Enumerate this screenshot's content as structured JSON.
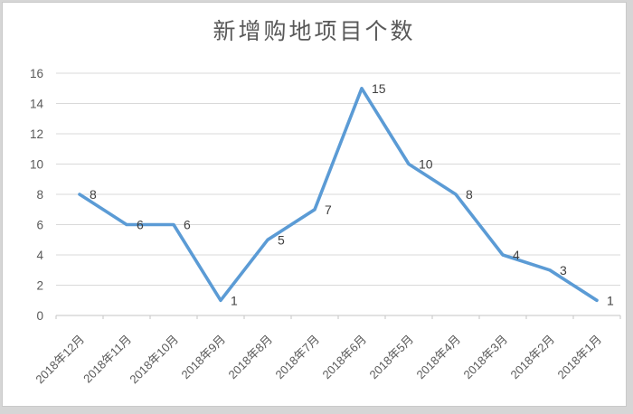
{
  "window": {
    "background_color": "#d6d6d6",
    "card_background": "#ffffff",
    "card_border_color": "#c9c9c9"
  },
  "chart": {
    "line_color": "#5b9bd5",
    "gridline_color": "#d9d9d9",
    "axis_color": "#c6c6c6",
    "tick_label_color": "#595959",
    "data_label_color": "#404040",
    "title_color": "#595959"
  },
  "chart_data": {
    "type": "line",
    "title": "新增购地项目个数",
    "categories": [
      "2018年12月",
      "2018年11月",
      "2018年10月",
      "2018年9月",
      "2018年8月",
      "2018年7月",
      "2018年6月",
      "2018年5月",
      "2018年4月",
      "2018年3月",
      "2018年2月",
      "2018年1月"
    ],
    "values": [
      8,
      6,
      6,
      1,
      5,
      7,
      15,
      10,
      8,
      4,
      3,
      1
    ],
    "xlabel": "",
    "ylabel": "",
    "ylim": [
      0,
      16
    ],
    "ytick_step": 2,
    "yticks": [
      0,
      2,
      4,
      6,
      8,
      10,
      12,
      14,
      16
    ],
    "grid": true,
    "legend": false,
    "data_labels_position": "right",
    "x_label_rotation_deg": -45
  }
}
